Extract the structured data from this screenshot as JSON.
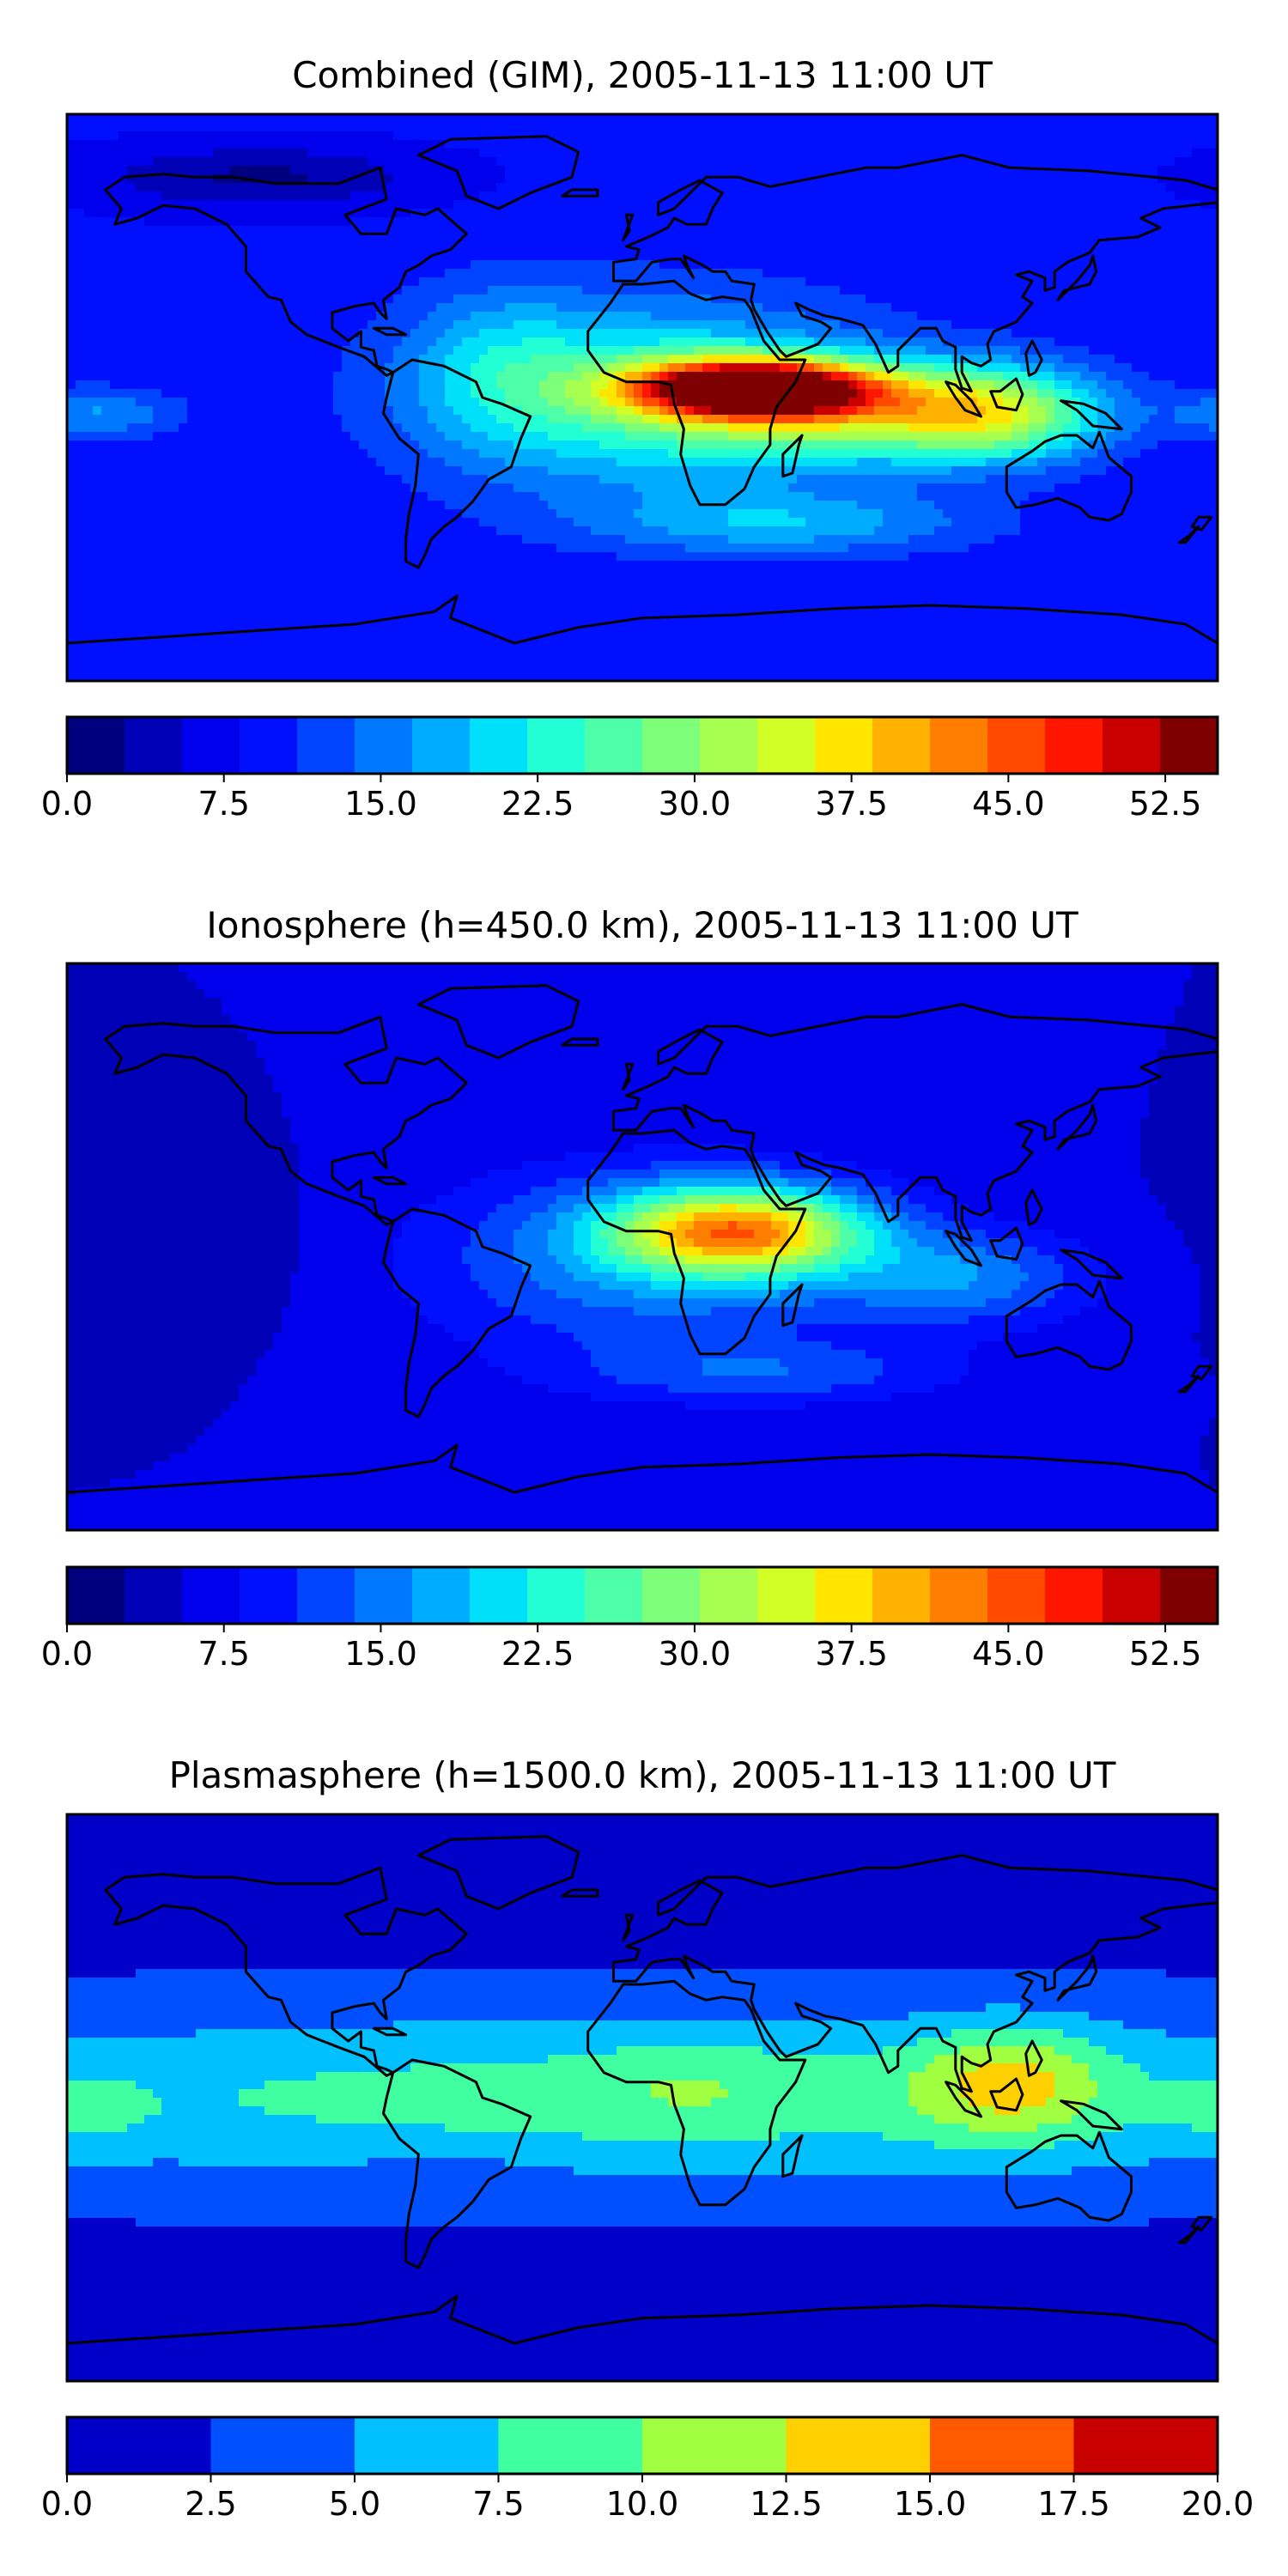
{
  "chart_data": [
    {
      "type": "heatmap",
      "title": "Combined (GIM), 2005-11-13 11:00 UT",
      "basemap": "coastlines-equirectangular",
      "colorbar": {
        "vmin": 0.0,
        "vmax": 55.0,
        "step": 2.5,
        "ticks": [
          "0.0",
          "7.5",
          "15.0",
          "22.5",
          "30.0",
          "37.5",
          "45.0",
          "52.5"
        ],
        "colors": [
          "#00007f",
          "#0000b6",
          "#0000ed",
          "#0010ff",
          "#0044ff",
          "#0078ff",
          "#00acff",
          "#00e0fa",
          "#22ffd4",
          "#4effa9",
          "#7dff7a",
          "#a7ff50",
          "#d1ff26",
          "#ffe500",
          "#ffb100",
          "#ff7e00",
          "#ff4a00",
          "#ff1600",
          "#c80000",
          "#7f0000"
        ]
      },
      "field": {
        "base": 8,
        "blobs": [
          {
            "lon": 35,
            "lat": 3,
            "value": 41,
            "spread_lon": 38,
            "spread_lat": 9
          },
          {
            "lon": 5,
            "lat": 0,
            "value": 14,
            "spread_lon": 70,
            "spread_lat": 30
          },
          {
            "lon": 60,
            "lat": -5,
            "value": 13,
            "spread_lon": 50,
            "spread_lat": 14
          },
          {
            "lon": 110,
            "lat": -5,
            "value": 20,
            "spread_lon": 35,
            "spread_lat": 15
          },
          {
            "lon": 45,
            "lat": -40,
            "value": 8,
            "spread_lon": 60,
            "spread_lat": 10
          },
          {
            "lon": -170,
            "lat": -5,
            "value": 7,
            "spread_lon": 25,
            "spread_lat": 8
          },
          {
            "lon": -45,
            "lat": 10,
            "value": 6,
            "spread_lon": 30,
            "spread_lat": 25
          },
          {
            "lon": -120,
            "lat": 70,
            "value": -6,
            "spread_lon": 50,
            "spread_lat": 10
          }
        ]
      }
    },
    {
      "type": "heatmap",
      "title": "Ionosphere  (h=450.0 km), 2005-11-13 11:00 UT",
      "basemap": "coastlines-equirectangular",
      "colorbar": {
        "vmin": 0.0,
        "vmax": 55.0,
        "step": 2.5,
        "ticks": [
          "0.0",
          "7.5",
          "15.0",
          "22.5",
          "30.0",
          "37.5",
          "45.0",
          "52.5"
        ],
        "colors": [
          "#00007f",
          "#0000b6",
          "#0000ed",
          "#0010ff",
          "#0044ff",
          "#0078ff",
          "#00acff",
          "#00e0fa",
          "#22ffd4",
          "#4effa9",
          "#7dff7a",
          "#a7ff50",
          "#d1ff26",
          "#ffe500",
          "#ffb100",
          "#ff7e00",
          "#ff4a00",
          "#ff1600",
          "#c80000",
          "#7f0000"
        ]
      },
      "field": {
        "base": 5,
        "blobs": [
          {
            "lon": 30,
            "lat": 5,
            "value": 29,
            "spread_lon": 40,
            "spread_lat": 14
          },
          {
            "lon": 0,
            "lat": -5,
            "value": 9,
            "spread_lon": 70,
            "spread_lat": 30
          },
          {
            "lon": 100,
            "lat": -10,
            "value": 9,
            "spread_lon": 40,
            "spread_lat": 15
          },
          {
            "lon": 40,
            "lat": -40,
            "value": 6,
            "spread_lon": 60,
            "spread_lat": 10
          },
          {
            "lon": -140,
            "lat": 0,
            "value": -2,
            "spread_lon": 35,
            "spread_lat": 25
          }
        ]
      }
    },
    {
      "type": "heatmap",
      "title": "Plasmasphere (h=1500.0 km), 2005-11-13 11:00 UT",
      "basemap": "coastlines-equirectangular",
      "colorbar": {
        "vmin": 0.0,
        "vmax": 20.0,
        "step": 2.5,
        "ticks": [
          "0.0",
          "2.5",
          "5.0",
          "7.5",
          "10.0",
          "12.5",
          "15.0",
          "17.5",
          "20.0"
        ],
        "colors": [
          "#0000c8",
          "#0050ff",
          "#00c0ff",
          "#40ffa0",
          "#a0ff40",
          "#ffd000",
          "#ff5a00",
          "#c80000"
        ]
      },
      "field": {
        "base": 1.8,
        "blobs": [
          {
            "lon": 0,
            "lat": 0,
            "value": 6.8,
            "spread_lon": 300,
            "spread_lat": 28
          },
          {
            "lon": 115,
            "lat": 5,
            "value": 6.5,
            "spread_lon": 30,
            "spread_lat": 18
          },
          {
            "lon": 15,
            "lat": 5,
            "value": 1.8,
            "spread_lon": 30,
            "spread_lat": 15
          },
          {
            "lon": -175,
            "lat": -5,
            "value": 2.2,
            "spread_lon": 20,
            "spread_lat": 12
          },
          {
            "lon": -60,
            "lat": -25,
            "value": -1.2,
            "spread_lon": 30,
            "spread_lat": 10
          }
        ]
      }
    }
  ]
}
